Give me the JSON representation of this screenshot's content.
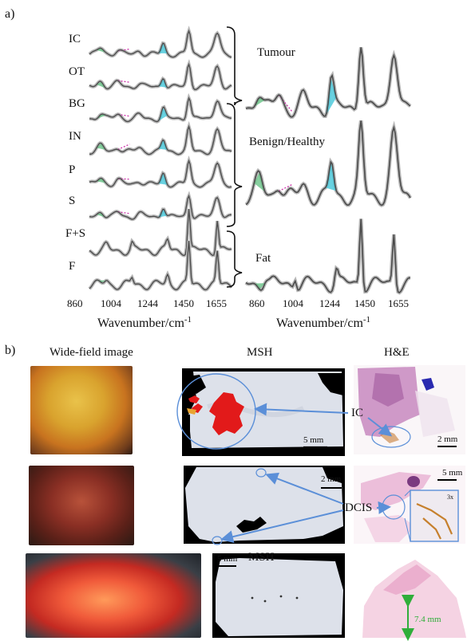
{
  "panel_a": {
    "letter": "a)",
    "sample_labels": [
      "IC",
      "OT",
      "BG",
      "IN",
      "P",
      "S",
      "F+S",
      "F"
    ],
    "group_labels": [
      "Tumour",
      "Benign/Healthy",
      "Fat"
    ],
    "x_ticks": [
      "860",
      "1004",
      "1244",
      "1450",
      "1655"
    ],
    "x_axis_label": "Wavenumber/cm",
    "x_axis_exponent": "-1"
  },
  "panel_b": {
    "letter": "b)",
    "column_headers": [
      "Wide-field image",
      "MSH",
      "H&E",
      "MSH"
    ],
    "callouts": [
      "IC",
      "DCIS"
    ],
    "scale_bars": [
      "5 mm",
      "2 mm",
      "5 mm",
      "2 mm",
      "5 mm"
    ],
    "inset_label": "3x",
    "measurement": "7.4 mm"
  },
  "colors": {
    "spectrum": "#4a4a4a",
    "band": "#b8b8b8",
    "fill_green": "#5fbf7f",
    "fill_cyan": "#43c7d9",
    "fill_magenta": "#cc33aa",
    "tissue_red": "#e21a1a",
    "arrow_blue": "#5b8fd8",
    "measure_green": "#2fae3a"
  }
}
